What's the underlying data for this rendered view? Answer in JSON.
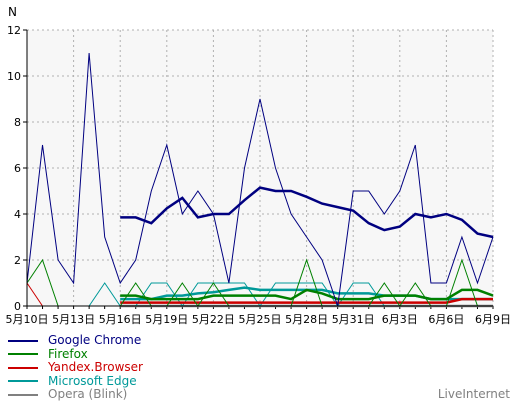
{
  "chart_data": {
    "type": "line",
    "ylabel": "N",
    "ylim": [
      0,
      12
    ],
    "yticks": [
      "0",
      "2",
      "4",
      "6",
      "8",
      "10",
      "12"
    ],
    "grid": true,
    "legend_position": "bottom-left",
    "dates": [
      "5月10日",
      "5月11日",
      "5月12日",
      "5月13日",
      "5月14日",
      "5月15日",
      "5月16日",
      "5月17日",
      "5月18日",
      "5月19日",
      "5月20日",
      "5月21日",
      "5月22日",
      "5月23日",
      "5月24日",
      "5月25日",
      "5月26日",
      "5月27日",
      "5月28日",
      "5月29日",
      "5月30日",
      "5月31日",
      "6月1日",
      "6月2日",
      "6月3日",
      "6月4日",
      "6月5日",
      "6月6日",
      "6月7日",
      "6月8日",
      "6月9日"
    ],
    "xtick_labels": [
      "5月10日",
      "5月13日",
      "5月16日",
      "5月19日",
      "5月22日",
      "5月25日",
      "5月28日",
      "5月31日",
      "6月3日",
      "6月6日",
      "6月9日"
    ],
    "series": [
      {
        "name": "Google Chrome",
        "color": "#000080",
        "values": [
          1,
          7,
          2,
          1,
          11,
          3,
          1,
          2,
          5,
          7,
          4,
          5,
          4,
          1,
          6,
          9,
          6,
          4,
          3,
          2,
          0,
          5,
          5,
          4,
          5,
          7,
          1,
          1,
          3,
          1,
          3
        ],
        "average": [
          null,
          null,
          null,
          null,
          null,
          null,
          3.85,
          3.85,
          3.6,
          4.25,
          4.7,
          3.85,
          4.0,
          4.0,
          4.6,
          5.15,
          5.0,
          5.0,
          4.75,
          4.45,
          4.3,
          4.15,
          3.6,
          3.3,
          3.45,
          4.0,
          3.85,
          4.0,
          3.75,
          3.15,
          3.0
        ]
      },
      {
        "name": "Firefox",
        "color": "#008000",
        "values": [
          1,
          2,
          0,
          0,
          0,
          0,
          0,
          1,
          0,
          0,
          1,
          0,
          1,
          0,
          0,
          0,
          0,
          0,
          2,
          0,
          0,
          0,
          0,
          1,
          0,
          1,
          0,
          0,
          2,
          0,
          0
        ],
        "average": [
          null,
          null,
          null,
          null,
          null,
          null,
          0.45,
          0.45,
          0.3,
          0.3,
          0.3,
          0.3,
          0.45,
          0.45,
          0.45,
          0.45,
          0.45,
          0.3,
          0.7,
          0.55,
          0.3,
          0.3,
          0.3,
          0.45,
          0.45,
          0.45,
          0.3,
          0.3,
          0.7,
          0.7,
          0.45
        ]
      },
      {
        "name": "Yandex.Browser",
        "color": "#cc0000",
        "values": [
          1,
          0,
          0,
          0,
          0,
          0,
          0,
          0,
          0,
          0,
          0,
          0,
          0,
          0,
          0,
          0,
          0,
          0,
          0,
          0,
          0,
          0,
          0,
          0,
          0,
          0,
          0,
          0,
          0,
          0,
          0
        ],
        "average": [
          null,
          null,
          null,
          null,
          null,
          null,
          0.15,
          0.15,
          0.15,
          0.15,
          0.15,
          0.15,
          0.15,
          0.15,
          0.15,
          0.15,
          0.15,
          0.15,
          0.15,
          0.15,
          0.15,
          0.15,
          0.15,
          0.15,
          0.15,
          0.15,
          0.15,
          0.15,
          0.3,
          0.3,
          0.3
        ]
      },
      {
        "name": "Microsoft Edge",
        "color": "#009999",
        "values": [
          0,
          0,
          0,
          0,
          0,
          1,
          0,
          0,
          1,
          1,
          0,
          1,
          1,
          1,
          1,
          0,
          1,
          1,
          1,
          1,
          0,
          1,
          1,
          0,
          0,
          0,
          0,
          0,
          0,
          0,
          0
        ],
        "average": [
          null,
          null,
          null,
          null,
          null,
          null,
          0.3,
          0.3,
          0.3,
          0.45,
          0.45,
          0.55,
          0.6,
          0.7,
          0.8,
          0.7,
          0.7,
          0.7,
          0.7,
          0.7,
          0.55,
          0.55,
          0.55,
          0.45,
          0.45,
          0.45,
          0.3,
          0.3,
          0.3,
          0.3,
          0.3
        ]
      },
      {
        "name": "Opera (Blink)",
        "color": "#808080",
        "values": [
          0,
          0,
          0,
          0,
          0,
          0,
          0,
          0,
          0,
          0,
          0,
          0,
          0,
          0,
          0,
          0,
          0,
          0,
          0,
          0,
          0,
          0,
          0,
          0,
          0,
          0,
          0,
          0,
          0,
          0,
          0
        ],
        "average": [
          null,
          null,
          null,
          null,
          null,
          null,
          0,
          0,
          0,
          0,
          0,
          0,
          0,
          0,
          0,
          0,
          0,
          0,
          0,
          0,
          0,
          0,
          0,
          0,
          0,
          0,
          0,
          0,
          0,
          0,
          0
        ]
      }
    ],
    "brand": "LiveInternet"
  }
}
